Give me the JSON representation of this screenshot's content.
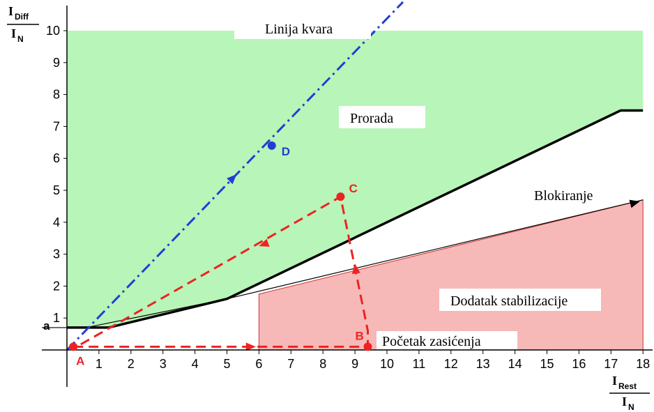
{
  "chart_data": {
    "type": "line",
    "title": "",
    "x_range": [
      0,
      18
    ],
    "y_range": [
      0,
      10
    ],
    "x_ticks": [
      "1",
      "2",
      "3",
      "4",
      "5",
      "6",
      "7",
      "8",
      "9",
      "10",
      "11",
      "12",
      "13",
      "14",
      "15",
      "16",
      "17",
      "18"
    ],
    "y_ticks": [
      "1",
      "2",
      "3",
      "4",
      "5",
      "6",
      "7",
      "8",
      "9",
      "10"
    ],
    "y_label_parts": {
      "num": "I",
      "num_sub": "Diff",
      "den": "I",
      "den_sub": "N"
    },
    "x_label_parts": {
      "num": "I",
      "num_sub": "Rest",
      "den": "I",
      "den_sub": "N"
    },
    "y_marker_label": "a",
    "y_marker_value": 0.7,
    "regions": {
      "operate": {
        "label": "Prorada",
        "color": "#b8f5b8",
        "points": [
          [
            0,
            0.7
          ],
          [
            1.3,
            0.7
          ],
          [
            5,
            1.6
          ],
          [
            17.3,
            7.5
          ],
          [
            18,
            7.5
          ],
          [
            18,
            10
          ],
          [
            0,
            10
          ]
        ]
      },
      "add_stabilization": {
        "label": "Dodatak stabilizacije",
        "color": "#f7b8b8",
        "points": [
          [
            6,
            1.75
          ],
          [
            18,
            4.7
          ],
          [
            18,
            0
          ],
          [
            6,
            0
          ]
        ]
      }
    },
    "series": [
      {
        "name": "Blokiranje",
        "color": "#000000",
        "style": "solid",
        "points": [
          [
            0.6,
            0.7
          ],
          [
            5,
            1.6
          ],
          [
            18,
            4.7
          ]
        ]
      },
      {
        "name": "",
        "color": "#000000",
        "style": "thick",
        "points": [
          [
            0,
            0.7
          ],
          [
            1.3,
            0.7
          ],
          [
            5,
            1.6
          ],
          [
            17.3,
            7.5
          ],
          [
            18,
            7.5
          ]
        ]
      },
      {
        "name": "Linija kvara",
        "color": "#1f3fd6",
        "style": "dash-dot",
        "points": [
          [
            0,
            0
          ],
          [
            10.5,
            10.9
          ]
        ]
      },
      {
        "name": "",
        "color": "#ee2222",
        "style": "dashed",
        "points": [
          [
            0.2,
            0.1
          ],
          [
            9.4,
            0.1
          ],
          [
            9.4,
            0.6
          ],
          [
            8.55,
            4.8
          ],
          [
            0.3,
            0.1
          ]
        ]
      }
    ],
    "points": [
      {
        "label": "A",
        "x": 0.2,
        "y": 0.1,
        "color": "#ee2222"
      },
      {
        "label": "B",
        "x": 9.4,
        "y": 0.1,
        "color": "#ee2222"
      },
      {
        "label": "C",
        "x": 8.55,
        "y": 4.8,
        "color": "#ee2222"
      },
      {
        "label": "D",
        "x": 6.4,
        "y": 6.4,
        "color": "#1f3fd6"
      }
    ],
    "annotations": {
      "fault_line": "Linija kvara",
      "operate": "Prorada",
      "blocking": "Blokiranje",
      "add_stab": "Dodatak stabilizacije",
      "saturation": "Početak zasićenja"
    }
  }
}
